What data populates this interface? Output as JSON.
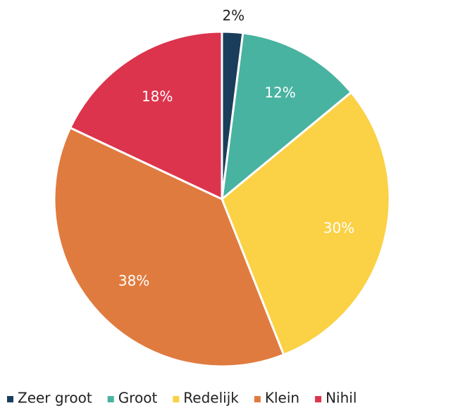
{
  "chart_data": {
    "type": "pie",
    "categories": [
      "Zeer groot",
      "Groot",
      "Redelijk",
      "Klein",
      "Nihil"
    ],
    "values": [
      2,
      12,
      30,
      38,
      18
    ],
    "value_labels": [
      "2%",
      "12%",
      "30%",
      "38%",
      "18%"
    ],
    "colors": [
      "#1a3d5c",
      "#48b3a0",
      "#fbd145",
      "#e07b3f",
      "#dc344d"
    ]
  }
}
